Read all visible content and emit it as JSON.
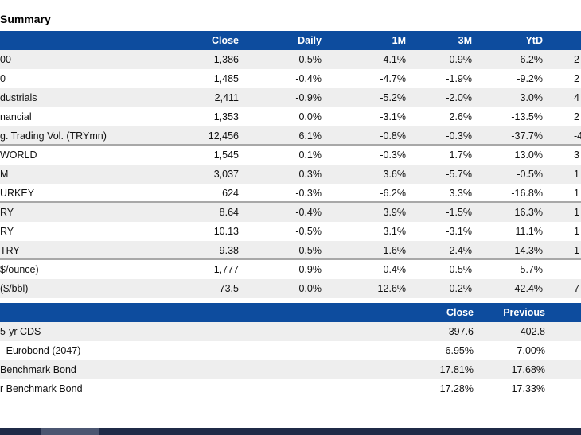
{
  "title": "Summary",
  "colors": {
    "header_navy": "#0d4c9e",
    "stripe_gray": "#eeeeee",
    "separator_gray": "#a8a8a8",
    "footer_navy": "#1f2a47",
    "footer_slate": "#4b5671"
  },
  "table1": {
    "headers": {
      "close": "Close",
      "daily": "Daily",
      "m1": "1M",
      "m3": "3M",
      "ytd": "YtD"
    },
    "rows": [
      {
        "label": "00",
        "close": "1,386",
        "daily": "-0.5%",
        "m1": "-4.1%",
        "m3": "-0.9%",
        "ytd": "-6.2%",
        "extra": "2"
      },
      {
        "label": "0",
        "close": "1,485",
        "daily": "-0.4%",
        "m1": "-4.7%",
        "m3": "-1.9%",
        "ytd": "-9.2%",
        "extra": "2"
      },
      {
        "label": "dustrials",
        "close": "2,411",
        "daily": "-0.9%",
        "m1": "-5.2%",
        "m3": "-2.0%",
        "ytd": "3.0%",
        "extra": "4"
      },
      {
        "label": "nancial",
        "close": "1,353",
        "daily": "0.0%",
        "m1": "-3.1%",
        "m3": "2.6%",
        "ytd": "-13.5%",
        "extra": "2"
      },
      {
        "label": "g. Trading Vol. (TRYmn)",
        "close": "12,456",
        "daily": "6.1%",
        "m1": "-0.8%",
        "m3": "-0.3%",
        "ytd": "-37.7%",
        "extra": "-4"
      },
      {
        "label": "WORLD",
        "close": "1,545",
        "daily": "0.1%",
        "m1": "-0.3%",
        "m3": "1.7%",
        "ytd": "13.0%",
        "extra": "3"
      },
      {
        "label": "M",
        "close": "3,037",
        "daily": "0.3%",
        "m1": "3.6%",
        "m3": "-5.7%",
        "ytd": "-0.5%",
        "extra": "1"
      },
      {
        "label": "URKEY",
        "close": "624",
        "daily": "-0.3%",
        "m1": "-6.2%",
        "m3": "3.3%",
        "ytd": "-16.8%",
        "extra": "1"
      },
      {
        "label": "RY",
        "close": "8.64",
        "daily": "-0.4%",
        "m1": "3.9%",
        "m3": "-1.5%",
        "ytd": "16.3%",
        "extra": "1"
      },
      {
        "label": "RY",
        "close": "10.13",
        "daily": "-0.5%",
        "m1": "3.1%",
        "m3": "-3.1%",
        "ytd": "11.1%",
        "extra": "1"
      },
      {
        "label": "TRY",
        "close": "9.38",
        "daily": "-0.5%",
        "m1": "1.6%",
        "m3": "-2.4%",
        "ytd": "14.3%",
        "extra": "1"
      },
      {
        "label": "$/ounce)",
        "close": "1,777",
        "daily": "0.9%",
        "m1": "-0.4%",
        "m3": "-0.5%",
        "ytd": "-5.7%",
        "extra": ""
      },
      {
        "label": "($/bbl)",
        "close": "73.5",
        "daily": "0.0%",
        "m1": "12.6%",
        "m3": "-0.2%",
        "ytd": "42.4%",
        "extra": "7"
      }
    ]
  },
  "table2": {
    "headers": {
      "close": "Close",
      "previous": "Previous"
    },
    "rows": [
      {
        "label": "5-yr CDS",
        "close": "397.6",
        "previous": "402.8"
      },
      {
        "label": "- Eurobond (2047)",
        "close": "6.95%",
        "previous": "7.00%"
      },
      {
        "label": "Benchmark Bond",
        "close": "17.81%",
        "previous": "17.68%"
      },
      {
        "label": "r Benchmark Bond",
        "close": "17.28%",
        "previous": "17.33%"
      }
    ]
  }
}
